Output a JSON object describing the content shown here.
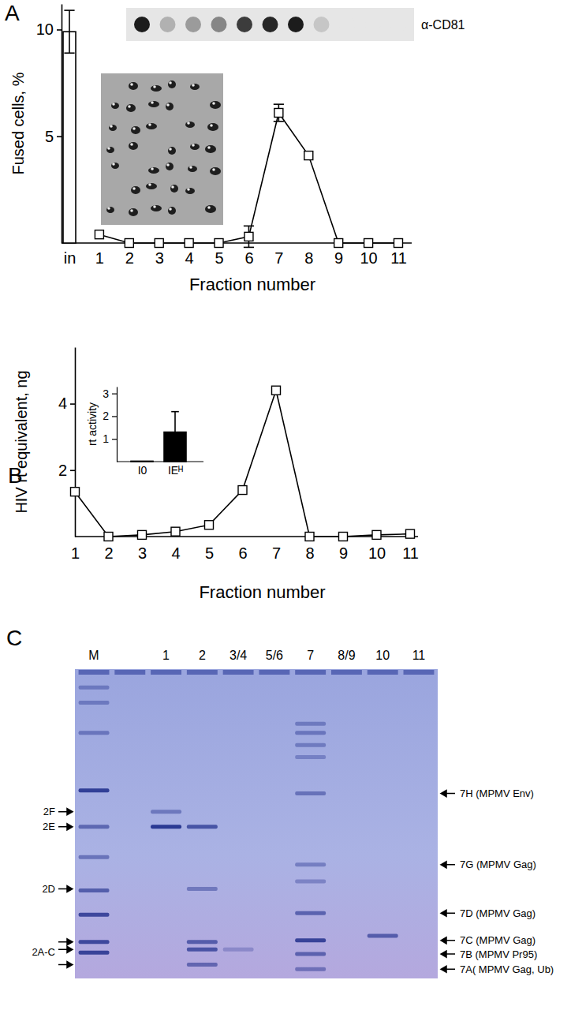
{
  "figure": {
    "panel_labels": [
      "A",
      "B",
      "C"
    ]
  },
  "chart_data": [
    {
      "type": "combo",
      "categories": [
        "in",
        "1",
        "2",
        "3",
        "4",
        "5",
        "6",
        "7",
        "8",
        "9",
        "10",
        "11"
      ],
      "xlabel": "Fraction number",
      "ylabel": "Fused cells, %",
      "ylim": [
        0,
        11.2
      ],
      "yticks": [
        5,
        10
      ],
      "series": [
        {
          "type": "bar",
          "color": "#ffffff",
          "values": [
            9.9,
            null,
            null,
            null,
            null,
            null,
            null,
            null,
            null,
            null,
            null,
            null
          ],
          "error": [
            1.0,
            null,
            null,
            null,
            null,
            null,
            null,
            null,
            null,
            null,
            null,
            null
          ]
        },
        {
          "type": "line",
          "color": "#000000",
          "marker": "square",
          "values": [
            null,
            0.4,
            0,
            0,
            0,
            0,
            0.3,
            6.1,
            4.1,
            0,
            0,
            0
          ],
          "error": [
            null,
            null,
            null,
            null,
            null,
            null,
            0.5,
            0.4,
            null,
            null,
            null,
            null
          ]
        }
      ]
    },
    {
      "type": "line",
      "categories": [
        "1",
        "2",
        "3",
        "4",
        "5",
        "6",
        "7",
        "8",
        "9",
        "10",
        "11"
      ],
      "xlabel": "Fraction number",
      "ylabel": "HIV rt equivalent, ng",
      "ylim": [
        0,
        5.7
      ],
      "yticks": [
        2,
        4
      ],
      "series": [
        {
          "color": "#000000",
          "marker": "square",
          "values": [
            1.35,
            0,
            0.05,
            0.15,
            0.35,
            1.4,
            4.4,
            0,
            0,
            0.05,
            0.08
          ]
        }
      ]
    },
    {
      "type": "bar",
      "categories": [
        "I0",
        "IEᴴ"
      ],
      "ylabel": "rt activity",
      "ylim": [
        0,
        3.3
      ],
      "yticks": [
        1,
        2,
        3
      ],
      "series": [
        {
          "color": "#000000",
          "values": [
            0.02,
            1.3
          ],
          "error": [
            null,
            0.9
          ]
        }
      ]
    }
  ],
  "dot_blot": {
    "label": "α-CD81",
    "intensities": [
      0.95,
      0.25,
      0.35,
      0.45,
      0.8,
      0.9,
      0.95,
      0.15,
      0,
      0,
      0
    ]
  },
  "gel": {
    "ylim": [
      0,
      1
    ],
    "lanes": [
      {
        "label": "M",
        "bands": [
          [
            0.05,
            0.3
          ],
          [
            0.1,
            0.3
          ],
          [
            0.2,
            0.35
          ],
          [
            0.39,
            0.9
          ],
          [
            0.51,
            0.5
          ],
          [
            0.61,
            0.4
          ],
          [
            0.72,
            0.6
          ],
          [
            0.8,
            0.8
          ],
          [
            0.89,
            0.8
          ],
          [
            0.925,
            0.85
          ]
        ]
      },
      {
        "label": null,
        "bands": []
      },
      {
        "label": "1",
        "bands": [
          [
            0.46,
            0.35
          ],
          [
            0.51,
            0.95
          ]
        ]
      },
      {
        "label": "2",
        "bands": [
          [
            0.51,
            0.7
          ],
          [
            0.715,
            0.35
          ],
          [
            0.89,
            0.6
          ],
          [
            0.915,
            0.7
          ],
          [
            0.965,
            0.5
          ]
        ]
      },
      {
        "label": "3/4",
        "bands": [
          [
            0.915,
            0.15
          ]
        ]
      },
      {
        "label": "5/6",
        "bands": []
      },
      {
        "label": "7",
        "bands": [
          [
            0.17,
            0.3
          ],
          [
            0.2,
            0.35
          ],
          [
            0.24,
            0.3
          ],
          [
            0.28,
            0.25
          ],
          [
            0.4,
            0.4
          ],
          [
            0.635,
            0.3
          ],
          [
            0.69,
            0.25
          ],
          [
            0.795,
            0.55
          ],
          [
            0.885,
            0.85
          ],
          [
            0.93,
            0.55
          ],
          [
            0.98,
            0.4
          ]
        ]
      },
      {
        "label": "8/9",
        "bands": []
      },
      {
        "label": "10",
        "bands": [
          [
            0.87,
            0.6
          ]
        ]
      },
      {
        "label": "11",
        "bands": []
      }
    ],
    "left_markers": [
      {
        "label": "2F",
        "positions": [
          0.46
        ]
      },
      {
        "label": "2E",
        "positions": [
          0.51
        ]
      },
      {
        "label": "2D",
        "positions": [
          0.715
        ]
      },
      {
        "label": "2A-C",
        "positions": [
          0.89,
          0.915,
          0.965
        ]
      }
    ],
    "right_markers": [
      {
        "label": "7H (MPMV Env)",
        "positions": [
          0.4
        ]
      },
      {
        "label": "7G (MPMV Gag)",
        "positions": [
          0.635
        ]
      },
      {
        "label": "7D (MPMV Gag)",
        "positions": [
          0.795
        ]
      },
      {
        "label": "7C (MPMV Gag)",
        "positions": [
          0.885
        ]
      },
      {
        "label": "7B (MPMV Pr95)",
        "positions": [
          0.93
        ]
      },
      {
        "label": "7A( MPMV Gag, Ub)",
        "positions": [
          0.98
        ]
      }
    ]
  }
}
